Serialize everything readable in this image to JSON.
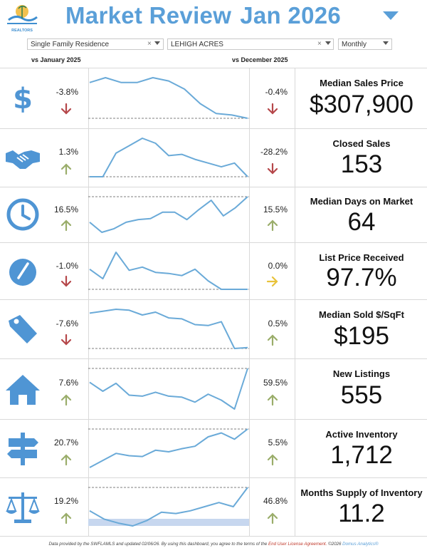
{
  "header": {
    "title": "Market Review",
    "month": "Jan 2026",
    "logo_text": "REALTORS",
    "accent": "#5a9fd8"
  },
  "filters": {
    "property_type": "Single Family Residence",
    "area": "LEHIGH ACRES",
    "period": "Monthly"
  },
  "columns": {
    "vs_year": "vs January 2025",
    "vs_month": "vs December 2025"
  },
  "colors": {
    "down": "#b5474a",
    "up": "#9aad6a",
    "flat": "#e8c23a",
    "icon": "#4f95d4",
    "line": "#6aaad8"
  },
  "metrics": [
    {
      "name": "Median Sales Price",
      "value": "$307,900",
      "yoy": "-3.8%",
      "yoy_dir": "down",
      "mom": "-0.4%",
      "mom_dir": "down",
      "icon": "dollar-icon",
      "trend": [
        62,
        68,
        62,
        62,
        68,
        64,
        54,
        36,
        24,
        22,
        18
      ],
      "ref_at": "bottom"
    },
    {
      "name": "Closed Sales",
      "value": "153",
      "yoy": "1.3%",
      "yoy_dir": "up",
      "mom": "-28.2%",
      "mom_dir": "down",
      "icon": "handshake-icon",
      "trend": [
        18,
        18,
        56,
        68,
        80,
        72,
        52,
        54,
        46,
        40,
        34,
        40,
        18
      ],
      "ref_at": "bottom"
    },
    {
      "name": "Median Days on Market",
      "value": "64",
      "yoy": "16.5%",
      "yoy_dir": "up",
      "mom": "15.5%",
      "mom_dir": "up",
      "icon": "clock-icon",
      "trend": [
        40,
        18,
        26,
        40,
        46,
        48,
        62,
        62,
        46,
        68,
        88,
        54,
        72,
        96
      ],
      "ref_at": "top"
    },
    {
      "name": "List Price Received",
      "value": "97.7%",
      "yoy": "-1.0%",
      "yoy_dir": "down",
      "mom": "0.0%",
      "mom_dir": "flat",
      "icon": "gauge-icon",
      "trend": [
        56,
        38,
        88,
        54,
        60,
        50,
        48,
        44,
        56,
        34,
        18,
        18,
        18
      ],
      "ref_at": "bottom"
    },
    {
      "name": "Median Sold $/SqFt",
      "value": "$195",
      "yoy": "-7.6%",
      "yoy_dir": "down",
      "mom": "0.5%",
      "mom_dir": "up",
      "icon": "tag-icon",
      "trend": [
        80,
        84,
        88,
        86,
        76,
        82,
        70,
        68,
        56,
        54,
        62,
        6,
        8
      ],
      "ref_at": "bottom"
    },
    {
      "name": "New Listings",
      "value": "555",
      "yoy": "7.6%",
      "yoy_dir": "up",
      "mom": "59.5%",
      "mom_dir": "up",
      "icon": "house-icon",
      "trend": [
        60,
        42,
        58,
        34,
        32,
        40,
        32,
        30,
        20,
        36,
        24,
        6,
        88
      ],
      "ref_at": "top"
    },
    {
      "name": "Active Inventory",
      "value": "1,712",
      "yoy": "20.7%",
      "yoy_dir": "up",
      "mom": "5.5%",
      "mom_dir": "up",
      "icon": "signpost-icon",
      "trend": [
        12,
        30,
        48,
        42,
        40,
        56,
        52,
        60,
        66,
        90,
        100,
        84,
        110
      ],
      "ref_at": "top"
    },
    {
      "name": "Months Supply of Inventory",
      "value": "11.2",
      "yoy": "19.2%",
      "yoy_dir": "up",
      "mom": "46.8%",
      "mom_dir": "up",
      "icon": "scales-icon",
      "trend": [
        40,
        28,
        22,
        18,
        26,
        38,
        36,
        40,
        46,
        52,
        46,
        74
      ],
      "ref_at": "top",
      "band": true
    }
  ],
  "footer": {
    "prefix": "Data provided by the SWFLAMLS and updated 02/06/26.  By using this dashboard, you agree to the terms of the ",
    "link": "End User License Agreement.",
    "suffix": "  ©2026 ",
    "brand": "Domus Analytics®"
  }
}
